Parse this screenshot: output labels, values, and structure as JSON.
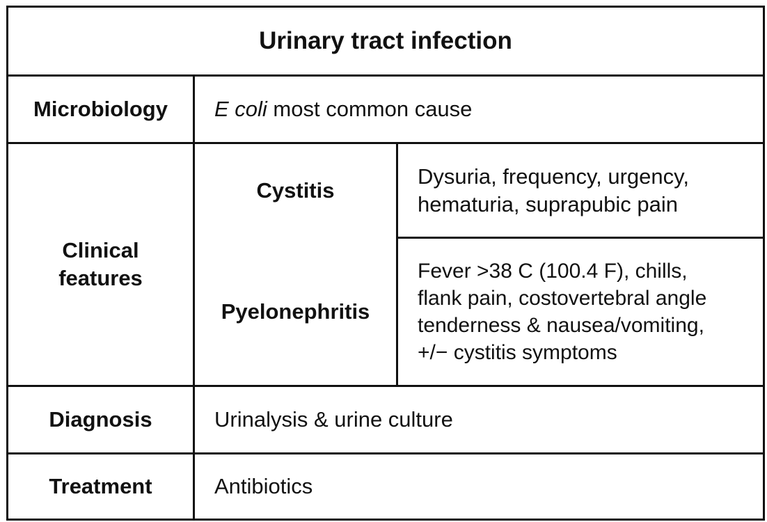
{
  "table": {
    "title": "Urinary tract infection",
    "rows": {
      "microbiology": {
        "label": "Microbiology",
        "value_italic": "E coli",
        "value_rest": " most common cause"
      },
      "clinical_features": {
        "label": "Clinical\nfeatures",
        "cystitis": {
          "label": "Cystitis",
          "value": "Dysuria, frequency, urgency,\nhematuria, suprapubic pain"
        },
        "pyelonephritis": {
          "label": "Pyelonephritis",
          "value": "Fever >38 C (100.4 F), chills,\nflank pain, costovertebral angle\ntenderness & nausea/vomiting,\n+/− cystitis symptoms"
        }
      },
      "diagnosis": {
        "label": "Diagnosis",
        "value": "Urinalysis & urine culture"
      },
      "treatment": {
        "label": "Treatment",
        "value": "Antibiotics"
      }
    }
  }
}
